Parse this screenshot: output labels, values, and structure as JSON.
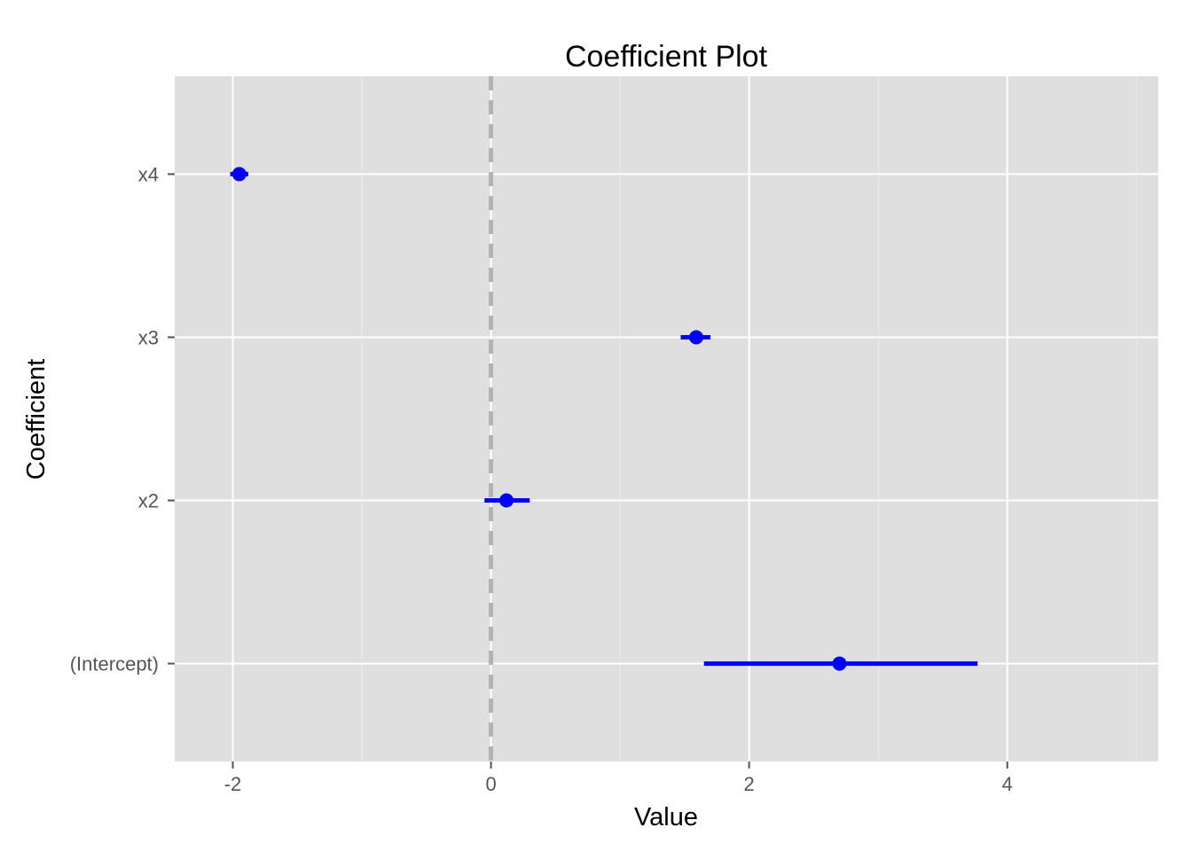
{
  "chart_data": {
    "type": "scatter",
    "title": "Coefficient Plot",
    "xlabel": "Value",
    "ylabel": "Coefficient",
    "xlim": [
      -2.45,
      5.17
    ],
    "x_ticks": [
      -2,
      0,
      2,
      4
    ],
    "x_tick_labels": [
      "-2",
      "0",
      "2",
      "4"
    ],
    "categories": [
      "(Intercept)",
      "x2",
      "x3",
      "x4"
    ],
    "series": [
      {
        "estimates": [
          2.7,
          0.12,
          1.59,
          -1.95
        ],
        "ci_low": [
          1.65,
          -0.05,
          1.47,
          -2.02
        ],
        "ci_high": [
          3.77,
          0.3,
          1.7,
          -1.88
        ]
      }
    ],
    "reference_line_x": 0,
    "grid": true,
    "colors": {
      "panel_background": "#dfdfdf",
      "grid_major": "#ffffff",
      "grid_minor": "#ececec",
      "point": "#0000ff",
      "interval": "#0000ff",
      "reference_line": "#b3b3b3"
    }
  }
}
